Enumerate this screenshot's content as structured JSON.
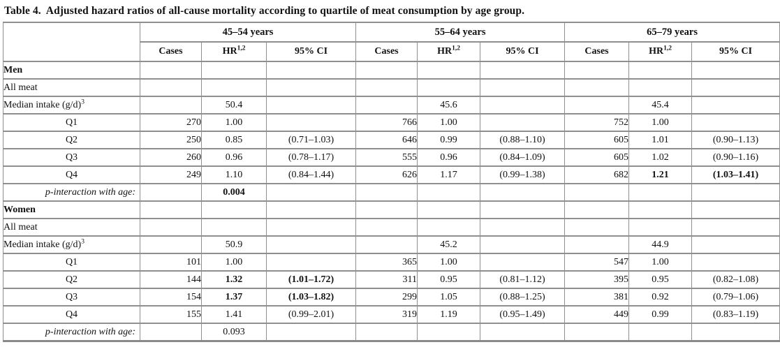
{
  "title": {
    "prefix": "Table 4.",
    "text": "Adjusted hazard ratios of all-cause mortality according to quartile of meat consumption by age group."
  },
  "table": {
    "groups": [
      {
        "label": "45–54 years"
      },
      {
        "label": "55–64 years"
      },
      {
        "label": "65–79 years"
      }
    ],
    "columns": {
      "cases": "Cases",
      "hr": "HR",
      "hr_sup": "1,2",
      "ci": "95% CI"
    },
    "rows": [
      {
        "label": "Men",
        "style": "section",
        "cells": [
          "",
          "",
          "",
          "",
          "",
          "",
          "",
          "",
          ""
        ],
        "bold": []
      },
      {
        "label": "All meat",
        "style": "plain",
        "cells": [
          "",
          "",
          "",
          "",
          "",
          "",
          "",
          "",
          ""
        ],
        "bold": []
      },
      {
        "label": "Median intake (g/d)",
        "sup": "3",
        "style": "plain",
        "cells": [
          "",
          "50.4",
          "",
          "",
          "45.6",
          "",
          "",
          "45.4",
          ""
        ],
        "bold": []
      },
      {
        "label": "Q1",
        "style": "q",
        "cells": [
          "270",
          "1.00",
          "",
          "766",
          "1.00",
          "",
          "752",
          "1.00",
          ""
        ],
        "bold": []
      },
      {
        "label": "Q2",
        "style": "q",
        "cells": [
          "250",
          "0.85",
          "(0.71–1.03)",
          "646",
          "0.99",
          "(0.88–1.10)",
          "605",
          "1.01",
          "(0.90–1.13)"
        ],
        "bold": []
      },
      {
        "label": "Q3",
        "style": "q",
        "cells": [
          "260",
          "0.96",
          "(0.78–1.17)",
          "555",
          "0.96",
          "(0.84–1.09)",
          "605",
          "1.02",
          "(0.90–1.16)"
        ],
        "bold": []
      },
      {
        "label": "Q4",
        "style": "q",
        "cells": [
          "249",
          "1.10",
          "(0.84–1.44)",
          "626",
          "1.17",
          "(0.99–1.38)",
          "682",
          "1.21",
          "(1.03–1.41)"
        ],
        "bold": [
          7,
          8
        ]
      },
      {
        "label": "p-interaction with age:",
        "style": "pint",
        "cells": [
          "",
          "0.004",
          "",
          "",
          "",
          "",
          "",
          "",
          ""
        ],
        "bold": [
          1
        ]
      },
      {
        "label": "Women",
        "style": "section",
        "cells": [
          "",
          "",
          "",
          "",
          "",
          "",
          "",
          "",
          ""
        ],
        "bold": []
      },
      {
        "label": "All meat",
        "style": "plain",
        "cells": [
          "",
          "",
          "",
          "",
          "",
          "",
          "",
          "",
          ""
        ],
        "bold": []
      },
      {
        "label": "Median intake (g/d)",
        "sup": "3",
        "style": "plain",
        "cells": [
          "",
          "50.9",
          "",
          "",
          "45.2",
          "",
          "",
          "44.9",
          ""
        ],
        "bold": []
      },
      {
        "label": "Q1",
        "style": "q",
        "cells": [
          "101",
          "1.00",
          "",
          "365",
          "1.00",
          "",
          "547",
          "1.00",
          ""
        ],
        "bold": []
      },
      {
        "label": "Q2",
        "style": "q",
        "cells": [
          "144",
          "1.32",
          "(1.01–1.72)",
          "311",
          "0.95",
          "(0.81–1.12)",
          "395",
          "0.95",
          "(0.82–1.08)"
        ],
        "bold": [
          1,
          2
        ]
      },
      {
        "label": "Q3",
        "style": "q",
        "cells": [
          "154",
          "1.37",
          "(1.03–1.82)",
          "299",
          "1.05",
          "(0.88–1.25)",
          "381",
          "0.92",
          "(0.79–1.06)"
        ],
        "bold": [
          1,
          2
        ]
      },
      {
        "label": "Q4",
        "style": "q",
        "cells": [
          "155",
          "1.41",
          "(0.99–2.01)",
          "319",
          "1.19",
          "(0.95–1.49)",
          "449",
          "0.99",
          "(0.83–1.19)"
        ],
        "bold": []
      },
      {
        "label": "p-interaction with age:",
        "style": "pint",
        "cells": [
          "",
          "0.093",
          "",
          "",
          "",
          "",
          "",
          "",
          ""
        ],
        "bold": []
      }
    ]
  }
}
